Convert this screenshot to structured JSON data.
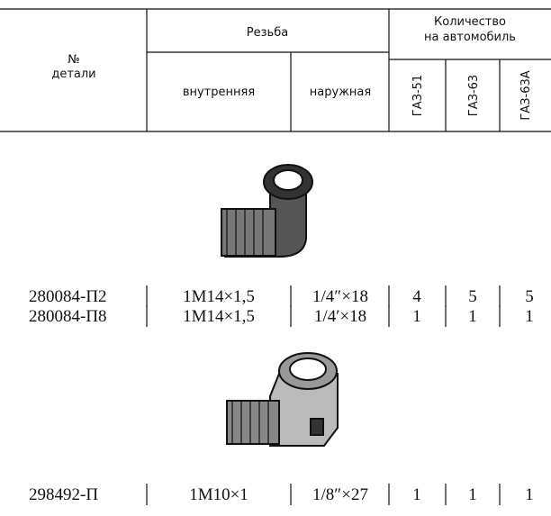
{
  "header": {
    "part_no": [
      "№",
      "детали"
    ],
    "thread": "Резьба",
    "thread_internal": "внутренняя",
    "thread_external": "наружная",
    "quantity": [
      "Количество",
      "на автомобиль"
    ],
    "models": [
      "ГАЗ-51",
      "ГАЗ-63",
      "ГАЗ-63А"
    ]
  },
  "table": {
    "rows": [
      [
        "280084-П2",
        "1М14×1,5",
        "1/4″×18",
        "4",
        "5",
        "5"
      ],
      [
        "280084-П8",
        "1М14×1,5",
        "1/4′×18",
        "1",
        "1",
        "1"
      ],
      [
        "298492-П",
        "1М10×1",
        "1/8″×27",
        "1",
        "1",
        "1"
      ]
    ]
  }
}
